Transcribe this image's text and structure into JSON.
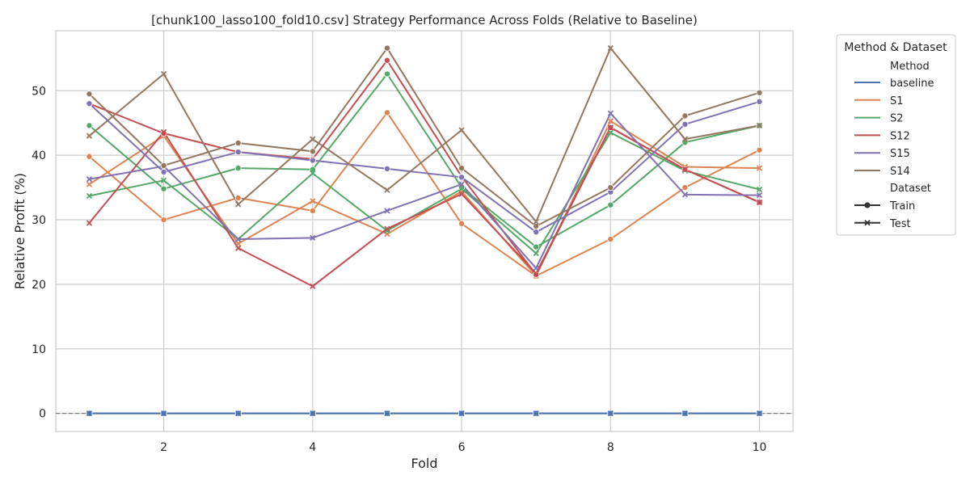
{
  "chart_data": {
    "type": "line",
    "title": "[chunk100_lasso100_fold10.csv] Strategy Performance Across Folds (Relative to Baseline)",
    "xlabel": "Fold",
    "ylabel": "Relative Profit (%)",
    "x": [
      1,
      2,
      3,
      4,
      5,
      6,
      7,
      8,
      9,
      10
    ],
    "xticks": [
      2,
      4,
      6,
      8,
      10
    ],
    "yticks": [
      0,
      10,
      20,
      30,
      40,
      50
    ],
    "xlim": [
      0.55,
      10.45
    ],
    "ylim": [
      -2.8,
      59.3
    ],
    "grid": true,
    "reference_line": {
      "y": 0,
      "style": "dashed",
      "color": "#808080"
    },
    "legend": {
      "title": "Method & Dataset",
      "placement": "outside top-right",
      "method_header": "Method",
      "dataset_header": "Dataset",
      "methods": [
        "baseline",
        "S1",
        "S2",
        "S12",
        "S15",
        "S14"
      ],
      "datasets": [
        {
          "label": "Train",
          "marker": "circle"
        },
        {
          "label": "Test",
          "marker": "x"
        }
      ]
    },
    "colors": {
      "baseline": "#4c72b0",
      "S1": "#dd8452",
      "S2": "#55a868",
      "S12": "#c44e52",
      "S15": "#8172b3",
      "S14": "#937860"
    },
    "series": [
      {
        "name": "baseline",
        "dataset": "Train",
        "values": [
          0,
          0,
          0,
          0,
          0,
          0,
          0,
          0,
          0,
          0
        ]
      },
      {
        "name": "baseline",
        "dataset": "Test",
        "values": [
          0,
          0,
          0,
          0,
          0,
          0,
          0,
          0,
          0,
          0
        ]
      },
      {
        "name": "S1",
        "dataset": "Train",
        "values": [
          39.8,
          30.0,
          33.4,
          31.4,
          46.6,
          29.4,
          21.3,
          27.0,
          35.0,
          40.8
        ]
      },
      {
        "name": "S1",
        "dataset": "Test",
        "values": [
          35.5,
          43.0,
          26.3,
          32.9,
          27.8,
          34.4,
          21.3,
          45.3,
          38.2,
          38.0
        ]
      },
      {
        "name": "S2",
        "dataset": "Train",
        "values": [
          44.6,
          34.8,
          38.0,
          37.8,
          52.6,
          35.0,
          25.8,
          32.3,
          42.0,
          44.6
        ]
      },
      {
        "name": "S2",
        "dataset": "Test",
        "values": [
          33.7,
          36.1,
          27.0,
          37.2,
          28.3,
          34.8,
          24.8,
          43.5,
          37.6,
          34.7
        ]
      },
      {
        "name": "S12",
        "dataset": "Train",
        "values": [
          48.0,
          43.4,
          40.5,
          39.4,
          54.7,
          36.7,
          21.5,
          44.3,
          37.8,
          32.7
        ]
      },
      {
        "name": "S12",
        "dataset": "Test",
        "values": [
          29.5,
          43.6,
          25.6,
          19.7,
          28.6,
          34.0,
          21.7,
          44.3,
          37.8,
          32.7
        ]
      },
      {
        "name": "S15",
        "dataset": "Train",
        "values": [
          48.0,
          37.4,
          40.5,
          39.2,
          37.9,
          36.6,
          28.1,
          34.3,
          44.8,
          48.3
        ]
      },
      {
        "name": "S15",
        "dataset": "Test",
        "values": [
          36.3,
          38.3,
          27.0,
          27.2,
          31.4,
          35.5,
          22.5,
          46.5,
          33.9,
          33.8
        ]
      },
      {
        "name": "S14",
        "dataset": "Train",
        "values": [
          49.5,
          38.4,
          41.9,
          40.6,
          56.6,
          38.0,
          29.0,
          35.0,
          46.1,
          49.7
        ]
      },
      {
        "name": "S14",
        "dataset": "Test",
        "values": [
          43.0,
          52.6,
          32.4,
          42.5,
          34.6,
          43.9,
          29.7,
          56.6,
          42.5,
          44.6
        ]
      }
    ]
  }
}
